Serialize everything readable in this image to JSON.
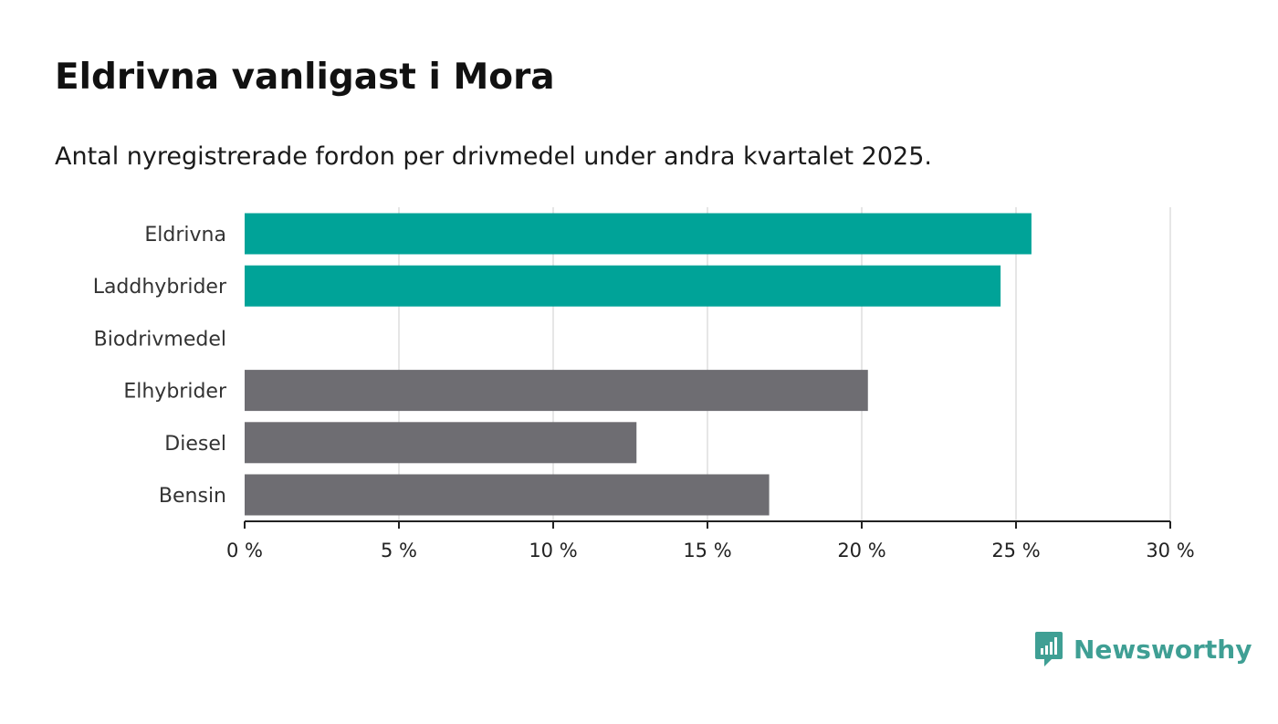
{
  "title": "Eldrivna vanligast i Mora",
  "subtitle": "Antal nyregistrerade fordon per drivmedel under andra kvartalet 2025.",
  "brand": {
    "name": "Newsworthy",
    "color": "#3f9f94",
    "icon": "bar-chart-speech-bubble-icon"
  },
  "colors": {
    "highlight": "#00a398",
    "default": "#6e6d72",
    "grid": "#dddddd",
    "axis": "#222222"
  },
  "chart_data": {
    "type": "bar",
    "orientation": "horizontal",
    "categories": [
      "Eldrivna",
      "Laddhybrider",
      "Biodrivmedel",
      "Elhybrider",
      "Diesel",
      "Bensin"
    ],
    "values": [
      25.5,
      24.5,
      0,
      20.2,
      12.7,
      17.0
    ],
    "highlighted": [
      true,
      true,
      false,
      false,
      false,
      false
    ],
    "xlim": [
      0,
      30
    ],
    "xticks": [
      0,
      5,
      10,
      15,
      20,
      25,
      30
    ],
    "xtick_labels": [
      "0 %",
      "5 %",
      "10 %",
      "15 %",
      "20 %",
      "25 %",
      "30 %"
    ],
    "grid": "vertical",
    "legend": "none"
  }
}
